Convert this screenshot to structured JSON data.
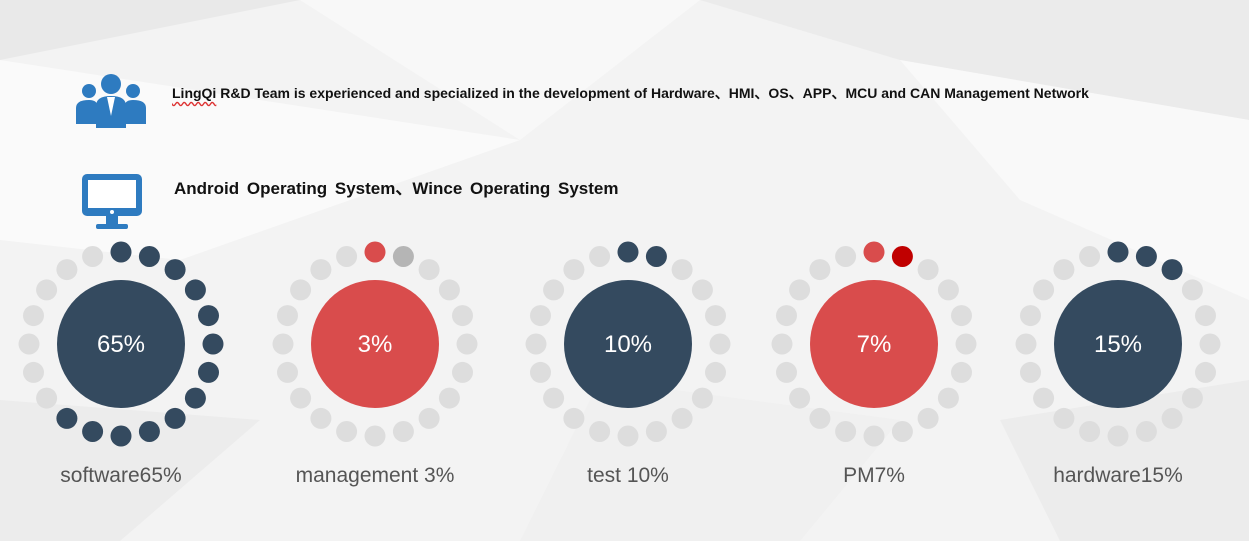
{
  "intro": {
    "brand": "LingQi",
    "text": " R&D Team is experienced and specialized in the development of Hardware、HMI、OS、APP、MCU and CAN Management Network"
  },
  "os_line": "Android Operating System、Wince Operating System",
  "icons": {
    "team": "team-people-icon",
    "monitor": "monitor-icon"
  },
  "colors": {
    "dark": "#344a5f",
    "red": "#d94c4c",
    "dark_red": "#c00000",
    "grey_dot": "#dddddd",
    "blue_icon": "#2e7bc0"
  },
  "chart_data": {
    "type": "donut-dots",
    "categories": [
      "software",
      "management",
      "test",
      "PM",
      "hardware"
    ],
    "values": [
      65,
      3,
      10,
      7,
      15
    ],
    "center_labels": [
      "65%",
      "3%",
      "10%",
      "7%",
      "15%"
    ],
    "labels": [
      "software65%",
      "management 3%",
      "test 10%",
      "PM7%",
      "hardware15%"
    ]
  }
}
